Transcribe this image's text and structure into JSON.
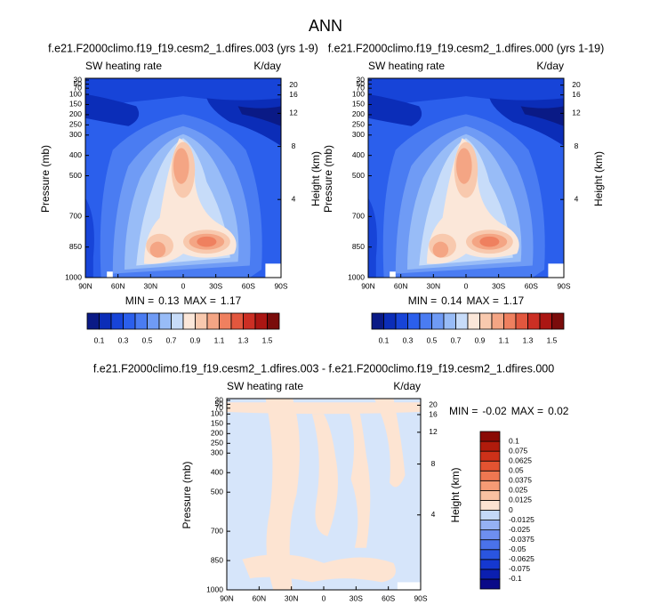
{
  "page_title": "ANN",
  "chart_data": [
    {
      "type": "contour",
      "title": "f.e21.F2000climo.f19_f19.cesm2_1.dfires.003 (yrs 1-9)",
      "left_label": "SW heating rate",
      "right_label": "K/day",
      "ylabel": "Pressure (mb)",
      "y2label": "Height (km)",
      "xlim": [
        90,
        -90
      ],
      "xticks": [
        {
          "value": 90,
          "label": "90N"
        },
        {
          "value": 60,
          "label": "60N"
        },
        {
          "value": 30,
          "label": "30N"
        },
        0,
        {
          "value": -30,
          "label": "30S"
        },
        {
          "value": -60,
          "label": "60S"
        },
        {
          "value": -90,
          "label": "90S"
        }
      ],
      "ylim": [
        1000,
        30
      ],
      "yticks": [
        30,
        50,
        70,
        100,
        150,
        200,
        250,
        300,
        400,
        500,
        700,
        850,
        1000
      ],
      "y2ticks": [
        4,
        8,
        12,
        16,
        20
      ],
      "min_label": "MIN =",
      "min": 0.13,
      "max_label": "MAX =",
      "max": 1.17,
      "colorbar": {
        "labels": [
          0.1,
          0.3,
          0.5,
          0.7,
          0.9,
          1.1,
          1.3,
          1.5
        ],
        "colors": [
          "#0a1a86",
          "#0b2db8",
          "#1744d8",
          "#2b5fec",
          "#4a7cf2",
          "#6f9bf5",
          "#98bcf7",
          "#c7dcf9",
          "#fbe7d9",
          "#f8c9ae",
          "#f4a584",
          "#ef805f",
          "#e2573e",
          "#cc2f24",
          "#ab1613",
          "#7a0c0b"
        ]
      }
    },
    {
      "type": "contour",
      "title": "f.e21.F2000climo.f19_f19.cesm2_1.dfires.000 (yrs 1-19)",
      "left_label": "SW heating rate",
      "right_label": "K/day",
      "ylabel": "Pressure (mb)",
      "y2label": "Height (km)",
      "xlim": [
        90,
        -90
      ],
      "xticks": [
        {
          "value": 90,
          "label": "90N"
        },
        {
          "value": 60,
          "label": "60N"
        },
        {
          "value": 30,
          "label": "30N"
        },
        0,
        {
          "value": -30,
          "label": "30S"
        },
        {
          "value": -60,
          "label": "60S"
        },
        {
          "value": -90,
          "label": "90S"
        }
      ],
      "ylim": [
        1000,
        30
      ],
      "yticks": [
        30,
        50,
        70,
        100,
        150,
        200,
        250,
        300,
        400,
        500,
        700,
        850,
        1000
      ],
      "y2ticks": [
        4,
        8,
        12,
        16,
        20
      ],
      "min_label": "MIN =",
      "min": 0.14,
      "max_label": "MAX =",
      "max": 1.17,
      "colorbar": {
        "labels": [
          0.1,
          0.3,
          0.5,
          0.7,
          0.9,
          1.1,
          1.3,
          1.5
        ],
        "colors": [
          "#0a1a86",
          "#0b2db8",
          "#1744d8",
          "#2b5fec",
          "#4a7cf2",
          "#6f9bf5",
          "#98bcf7",
          "#c7dcf9",
          "#fbe7d9",
          "#f8c9ae",
          "#f4a584",
          "#ef805f",
          "#e2573e",
          "#cc2f24",
          "#ab1613",
          "#7a0c0b"
        ]
      }
    },
    {
      "type": "contour",
      "title": "f.e21.F2000climo.f19_f19.cesm2_1.dfires.003 - f.e21.F2000climo.f19_f19.cesm2_1.dfires.000",
      "left_label": "SW heating rate",
      "right_label": "K/day",
      "ylabel": "Pressure (mb)",
      "y2label": "Height (km)",
      "xlim": [
        90,
        -90
      ],
      "xticks": [
        {
          "value": 90,
          "label": "90N"
        },
        {
          "value": 60,
          "label": "60N"
        },
        {
          "value": 30,
          "label": "30N"
        },
        0,
        {
          "value": -30,
          "label": "30S"
        },
        {
          "value": -60,
          "label": "60S"
        },
        {
          "value": -90,
          "label": "90S"
        }
      ],
      "ylim": [
        1000,
        30
      ],
      "yticks": [
        30,
        50,
        70,
        100,
        150,
        200,
        250,
        300,
        400,
        500,
        700,
        850,
        1000
      ],
      "y2ticks": [
        4,
        8,
        12,
        16,
        20
      ],
      "min_label": "MIN =",
      "min": -0.02,
      "max_label": "MAX =",
      "max": 0.02,
      "colorbar": {
        "labels": [
          0.1,
          0.075,
          0.0625,
          0.05,
          0.0375,
          0.025,
          0.0125,
          0,
          -0.0125,
          -0.025,
          -0.0375,
          -0.05,
          -0.0625,
          -0.075,
          -0.1
        ],
        "colors": [
          "#0a0a88",
          "#0b1fb0",
          "#1538d0",
          "#2a55e0",
          "#4a72ea",
          "#6e8ff0",
          "#95b1f4",
          "#c4d9f8",
          "#fde4d2",
          "#f9c1a1",
          "#f59b75",
          "#ef7751",
          "#e35331",
          "#cd3119",
          "#b01b0c",
          "#8a0a05"
        ]
      }
    }
  ]
}
